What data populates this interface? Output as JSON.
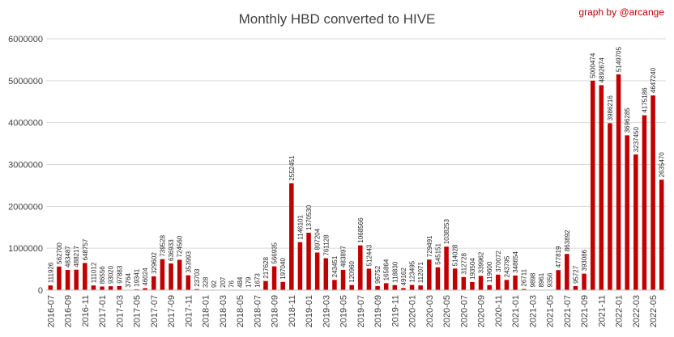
{
  "chart_data": {
    "type": "bar",
    "title": "Monthly HBD converted to  HIVE",
    "credit": "graph by @arcange",
    "bar_color": "#c00000",
    "ylim": [
      0,
      6000000
    ],
    "yticks": [
      "0",
      "1000000",
      "2000000",
      "3000000",
      "4000000",
      "5000000",
      "6000000"
    ],
    "grid": true,
    "categories": [
      "2016-07",
      "2016-08",
      "2016-09",
      "2016-10",
      "2016-11",
      "2016-12",
      "2017-01",
      "2017-02",
      "2017-03",
      "2017-04",
      "2017-05",
      "2017-06",
      "2017-07",
      "2017-08",
      "2017-09",
      "2017-10",
      "2017-11",
      "2017-12",
      "2018-01",
      "2018-02",
      "2018-03",
      "2018-04",
      "2018-05",
      "2018-06",
      "2018-07",
      "2018-08",
      "2018-09",
      "2018-10",
      "2018-11",
      "2018-12",
      "2019-01",
      "2019-02",
      "2019-03",
      "2019-04",
      "2019-05",
      "2019-06",
      "2019-07",
      "2019-08",
      "2019-09",
      "2019-10",
      "2019-11",
      "2019-12",
      "2020-01",
      "2020-02",
      "2020-03",
      "2020-04",
      "2020-05",
      "2020-06",
      "2020-07",
      "2020-08",
      "2020-09",
      "2020-10",
      "2020-11",
      "2020-12",
      "2021-01",
      "2021-02",
      "2021-03",
      "2021-04",
      "2021-05",
      "2021-06",
      "2021-07",
      "2021-08",
      "2021-09",
      "2021-10",
      "2021-11",
      "2021-12",
      "2022-01",
      "2022-02",
      "2022-03",
      "2022-04",
      "2022-05",
      "2022-06"
    ],
    "xtick_labels": [
      "2016-07",
      "2016-09",
      "2016-11",
      "2017-01",
      "2017-03",
      "2017-05",
      "2017-07",
      "2017-09",
      "2017-11",
      "2018-01",
      "2018-03",
      "2018-05",
      "2018-07",
      "2018-09",
      "2018-11",
      "2019-01",
      "2019-03",
      "2019-05",
      "2019-07",
      "2019-09",
      "2019-11",
      "2020-01",
      "2020-03",
      "2020-05",
      "2020-07",
      "2020-09",
      "2020-11",
      "2021-01",
      "2021-03",
      "2021-05",
      "2021-07",
      "2021-09",
      "2021-11",
      "2022-01",
      "2022-03",
      "2022-05"
    ],
    "values": [
      111926,
      562700,
      483487,
      488217,
      648757,
      111012,
      86556,
      93020,
      97883,
      3764,
      19341,
      46024,
      329602,
      739528,
      636933,
      724560,
      353993,
      23703,
      328,
      92,
      207,
      76,
      484,
      179,
      1673,
      217628,
      566935,
      197040,
      2552451,
      1146101,
      1370530,
      897204,
      761128,
      243451,
      483897,
      120960,
      1068566,
      512443,
      96752,
      165864,
      118830,
      49162,
      123495,
      112071,
      729491,
      545151,
      1038253,
      514028,
      312728,
      193504,
      339962,
      119600,
      370072,
      243795,
      348654,
      26711,
      9898,
      8961,
      9356,
      477819,
      863892,
      95727,
      393086,
      5000474,
      4892674,
      3986216,
      5149705,
      3696285,
      3237450,
      4175186,
      4647240,
      2635470
    ],
    "value_labels": [
      "111926",
      "562700",
      "483487",
      "488217",
      "648757",
      "111012",
      "86556",
      "93020",
      "97883",
      "3764",
      "19341",
      "46024",
      "329602",
      "739528",
      "636933",
      "724560",
      "353993",
      "23703",
      "328",
      "92",
      "207",
      "76",
      "484",
      "179",
      "1673",
      "217628",
      "566935",
      "197040",
      "2552451",
      "1146101",
      "1370530",
      "897204",
      "761128",
      "243451",
      "483897",
      "120960",
      "1068566",
      "512443",
      "96752",
      "165864",
      "118830",
      "49162",
      "123495",
      "112071",
      "729491",
      "545151",
      "1038253",
      "514028",
      "312728",
      "193504",
      "339962",
      "119600",
      "370072",
      "243795",
      "348654",
      "26711",
      "9898",
      "8961",
      "9356",
      "477819",
      "863892",
      "95727",
      "393086",
      "5000474",
      "4892674",
      "3986216",
      "5149705",
      "3696285",
      "3237450",
      "4175186",
      "4647240",
      "2635470"
    ]
  }
}
